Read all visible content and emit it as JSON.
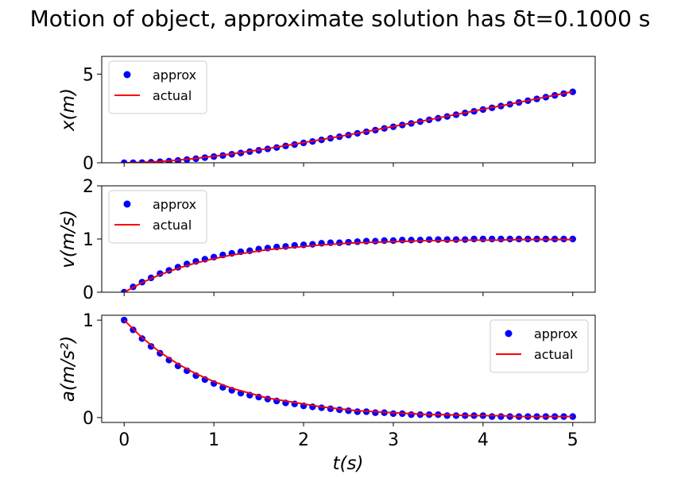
{
  "chart_data": {
    "type": "line",
    "title": "Motion of object, approximate solution has δt=0.1000 s",
    "xlabel": "t(s)",
    "xlim": [
      -0.25,
      5.25
    ],
    "xticks": [
      0,
      1,
      2,
      3,
      4,
      5
    ],
    "xticklabels": [
      "0",
      "1",
      "2",
      "3",
      "4",
      "5"
    ],
    "grid": false,
    "colors": {
      "approx": "#0000ff",
      "actual": "#ff0000"
    },
    "subplots": [
      {
        "id": "x",
        "ylabel": "x(m)",
        "ylim": [
          0,
          6
        ],
        "yticks": [
          0,
          5
        ],
        "yticklabels": [
          "0",
          "5"
        ],
        "legend_position": "upper-left",
        "series": [
          {
            "name": "approx",
            "style": "markers",
            "x": [
              0.0,
              0.1,
              0.2,
              0.3,
              0.4,
              0.5,
              0.6,
              0.7,
              0.8,
              0.9,
              1.0,
              1.1,
              1.2,
              1.3,
              1.4,
              1.5,
              1.6,
              1.7,
              1.8,
              1.9,
              2.0,
              2.1,
              2.2,
              2.3,
              2.4,
              2.5,
              2.6,
              2.7,
              2.8,
              2.9,
              3.0,
              3.1,
              3.2,
              3.3,
              3.4,
              3.5,
              3.6,
              3.7,
              3.8,
              3.9,
              4.0,
              4.1,
              4.2,
              4.3,
              4.4,
              4.5,
              4.6,
              4.7,
              4.8,
              4.9,
              5.0
            ],
            "y": [
              0.0,
              0.0,
              0.01,
              0.03,
              0.06,
              0.09,
              0.13,
              0.18,
              0.23,
              0.29,
              0.35,
              0.41,
              0.48,
              0.55,
              0.63,
              0.7,
              0.78,
              0.86,
              0.95,
              1.03,
              1.12,
              1.2,
              1.29,
              1.38,
              1.47,
              1.56,
              1.66,
              1.75,
              1.84,
              1.94,
              2.03,
              2.13,
              2.22,
              2.32,
              2.42,
              2.51,
              2.61,
              2.71,
              2.81,
              2.9,
              3.0,
              3.1,
              3.2,
              3.3,
              3.4,
              3.5,
              3.6,
              3.7,
              3.8,
              3.9,
              4.0
            ]
          },
          {
            "name": "actual",
            "style": "line",
            "x": [
              0.0,
              0.2,
              0.4,
              0.6,
              0.8,
              1.0,
              1.2,
              1.4,
              1.6,
              1.8,
              2.0,
              2.2,
              2.4,
              2.6,
              2.8,
              3.0,
              3.2,
              3.4,
              3.6,
              3.8,
              4.0,
              4.2,
              4.4,
              4.6,
              4.8,
              5.0
            ],
            "y": [
              0.0,
              0.02,
              0.07,
              0.15,
              0.25,
              0.37,
              0.5,
              0.65,
              0.8,
              0.97,
              1.14,
              1.31,
              1.49,
              1.67,
              1.86,
              2.05,
              2.24,
              2.43,
              2.63,
              2.82,
              3.02,
              3.21,
              3.41,
              3.61,
              3.81,
              4.01
            ]
          }
        ]
      },
      {
        "id": "v",
        "ylabel": "v(m/s)",
        "ylim": [
          0,
          2
        ],
        "yticks": [
          0,
          1,
          2
        ],
        "yticklabels": [
          "0",
          "1",
          "2"
        ],
        "legend_position": "upper-left",
        "series": [
          {
            "name": "approx",
            "style": "markers",
            "x": [
              0.0,
              0.1,
              0.2,
              0.3,
              0.4,
              0.5,
              0.6,
              0.7,
              0.8,
              0.9,
              1.0,
              1.1,
              1.2,
              1.3,
              1.4,
              1.5,
              1.6,
              1.7,
              1.8,
              1.9,
              2.0,
              2.1,
              2.2,
              2.3,
              2.4,
              2.5,
              2.6,
              2.7,
              2.8,
              2.9,
              3.0,
              3.1,
              3.2,
              3.3,
              3.4,
              3.5,
              3.6,
              3.7,
              3.8,
              3.9,
              4.0,
              4.1,
              4.2,
              4.3,
              4.4,
              4.5,
              4.6,
              4.7,
              4.8,
              4.9,
              5.0
            ],
            "y": [
              0.0,
              0.1,
              0.19,
              0.27,
              0.35,
              0.41,
              0.47,
              0.53,
              0.58,
              0.62,
              0.66,
              0.7,
              0.73,
              0.76,
              0.78,
              0.81,
              0.83,
              0.85,
              0.86,
              0.88,
              0.89,
              0.9,
              0.92,
              0.93,
              0.93,
              0.94,
              0.95,
              0.96,
              0.96,
              0.97,
              0.97,
              0.98,
              0.98,
              0.98,
              0.99,
              0.99,
              0.99,
              0.99,
              0.99,
              1.0,
              1.0,
              1.0,
              1.0,
              1.0,
              1.0,
              1.0,
              1.0,
              1.0,
              1.0,
              1.0,
              1.0
            ]
          },
          {
            "name": "actual",
            "style": "line",
            "x": [
              0.0,
              0.2,
              0.4,
              0.6,
              0.8,
              1.0,
              1.2,
              1.4,
              1.6,
              1.8,
              2.0,
              2.2,
              2.4,
              2.6,
              2.8,
              3.0,
              3.2,
              3.4,
              3.6,
              3.8,
              4.0,
              4.2,
              4.4,
              4.6,
              4.8,
              5.0
            ],
            "y": [
              0.0,
              0.18,
              0.33,
              0.45,
              0.55,
              0.63,
              0.7,
              0.75,
              0.8,
              0.83,
              0.86,
              0.89,
              0.91,
              0.93,
              0.94,
              0.95,
              0.96,
              0.97,
              0.97,
              0.98,
              0.98,
              0.98,
              0.99,
              0.99,
              0.99,
              0.99
            ]
          }
        ]
      },
      {
        "id": "a",
        "ylabel": "a(m/s²)",
        "ylim": [
          -0.05,
          1.05
        ],
        "yticks": [
          0,
          1
        ],
        "yticklabels": [
          "0",
          "1"
        ],
        "legend_position": "upper-right",
        "series": [
          {
            "name": "approx",
            "style": "markers",
            "x": [
              0.0,
              0.1,
              0.2,
              0.3,
              0.4,
              0.5,
              0.6,
              0.7,
              0.8,
              0.9,
              1.0,
              1.1,
              1.2,
              1.3,
              1.4,
              1.5,
              1.6,
              1.7,
              1.8,
              1.9,
              2.0,
              2.1,
              2.2,
              2.3,
              2.4,
              2.5,
              2.6,
              2.7,
              2.8,
              2.9,
              3.0,
              3.1,
              3.2,
              3.3,
              3.4,
              3.5,
              3.6,
              3.7,
              3.8,
              3.9,
              4.0,
              4.1,
              4.2,
              4.3,
              4.4,
              4.5,
              4.6,
              4.7,
              4.8,
              4.9,
              5.0
            ],
            "y": [
              1.0,
              0.9,
              0.81,
              0.73,
              0.66,
              0.59,
              0.53,
              0.48,
              0.43,
              0.39,
              0.35,
              0.31,
              0.28,
              0.25,
              0.23,
              0.21,
              0.19,
              0.17,
              0.15,
              0.14,
              0.12,
              0.11,
              0.1,
              0.09,
              0.08,
              0.07,
              0.06,
              0.06,
              0.05,
              0.05,
              0.04,
              0.04,
              0.03,
              0.03,
              0.03,
              0.03,
              0.02,
              0.02,
              0.02,
              0.02,
              0.02,
              0.01,
              0.01,
              0.01,
              0.01,
              0.01,
              0.01,
              0.01,
              0.01,
              0.01,
              0.01
            ]
          },
          {
            "name": "actual",
            "style": "line",
            "x": [
              0.0,
              0.2,
              0.4,
              0.6,
              0.8,
              1.0,
              1.2,
              1.4,
              1.6,
              1.8,
              2.0,
              2.2,
              2.4,
              2.6,
              2.8,
              3.0,
              3.2,
              3.4,
              3.6,
              3.8,
              4.0,
              4.2,
              4.4,
              4.6,
              4.8,
              5.0
            ],
            "y": [
              1.0,
              0.82,
              0.67,
              0.55,
              0.45,
              0.37,
              0.3,
              0.25,
              0.2,
              0.17,
              0.14,
              0.11,
              0.09,
              0.07,
              0.06,
              0.05,
              0.04,
              0.03,
              0.03,
              0.02,
              0.02,
              0.02,
              0.01,
              0.01,
              0.01,
              0.01
            ]
          }
        ]
      }
    ]
  }
}
